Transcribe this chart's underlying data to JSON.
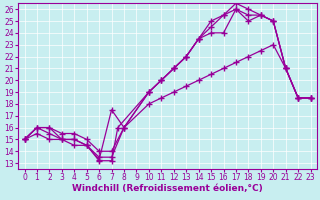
{
  "xlabel": "Windchill (Refroidissement éolien,°C)",
  "bg_color": "#c8eef0",
  "line_color": "#990099",
  "xlim": [
    -0.5,
    23.5
  ],
  "ylim": [
    12.5,
    26.5
  ],
  "xticks": [
    0,
    1,
    2,
    3,
    4,
    5,
    6,
    7,
    8,
    9,
    10,
    11,
    12,
    13,
    14,
    15,
    16,
    17,
    18,
    19,
    20,
    21,
    22,
    23
  ],
  "yticks": [
    13,
    14,
    15,
    16,
    17,
    18,
    19,
    20,
    21,
    22,
    23,
    24,
    25,
    26
  ],
  "line1_x": [
    0,
    1,
    2,
    3,
    4,
    5,
    6,
    7,
    8,
    10,
    11,
    12,
    13,
    14,
    15,
    16,
    17,
    18,
    19,
    20,
    21,
    22,
    23
  ],
  "line1_y": [
    15,
    16,
    16,
    15,
    15,
    14.5,
    13.3,
    17.5,
    16,
    19,
    20,
    21,
    22,
    23.5,
    24,
    24,
    26,
    25,
    25.5,
    25,
    21,
    18.5,
    18.5
  ],
  "line2_x": [
    0,
    1,
    2,
    3,
    4,
    5,
    6,
    7,
    7.5,
    10,
    11,
    12,
    13,
    14,
    15,
    16,
    17,
    18,
    19,
    20,
    21,
    22,
    23
  ],
  "line2_y": [
    15,
    16,
    15.5,
    15,
    15,
    14.5,
    13.2,
    13.2,
    16,
    19,
    20,
    21,
    22,
    23.5,
    24.5,
    25.5,
    26.5,
    26,
    25.5,
    25,
    21,
    18.5,
    18.5
  ],
  "line3_x": [
    0,
    1,
    2,
    3,
    4,
    5,
    6,
    7,
    8,
    10,
    11,
    12,
    13,
    14,
    15,
    16,
    17,
    18,
    19,
    20,
    21,
    22,
    23
  ],
  "line3_y": [
    15,
    15.5,
    15,
    15,
    14.5,
    14.5,
    13.5,
    13.5,
    16,
    19,
    20,
    21,
    22,
    23.5,
    25,
    25.5,
    26,
    25.5,
    25.5,
    25,
    21,
    18.5,
    18.5
  ],
  "line4_x": [
    0,
    1,
    2,
    3,
    4,
    5,
    6,
    7,
    8,
    10,
    11,
    12,
    13,
    14,
    15,
    16,
    17,
    18,
    19,
    20,
    21,
    22,
    23
  ],
  "line4_y": [
    15,
    16,
    16,
    15.5,
    15.5,
    15,
    14,
    14,
    16,
    18,
    18.5,
    19,
    19.5,
    20,
    20.5,
    21,
    21.5,
    22,
    22.5,
    23,
    21,
    18.5,
    18.5
  ],
  "marker": "+",
  "markersize": 4,
  "markeredgewidth": 1.0,
  "linewidth": 0.9,
  "xlabel_fontsize": 6.5,
  "tick_fontsize": 5.5,
  "grid_color": "#ffffff",
  "grid_linewidth": 0.5
}
